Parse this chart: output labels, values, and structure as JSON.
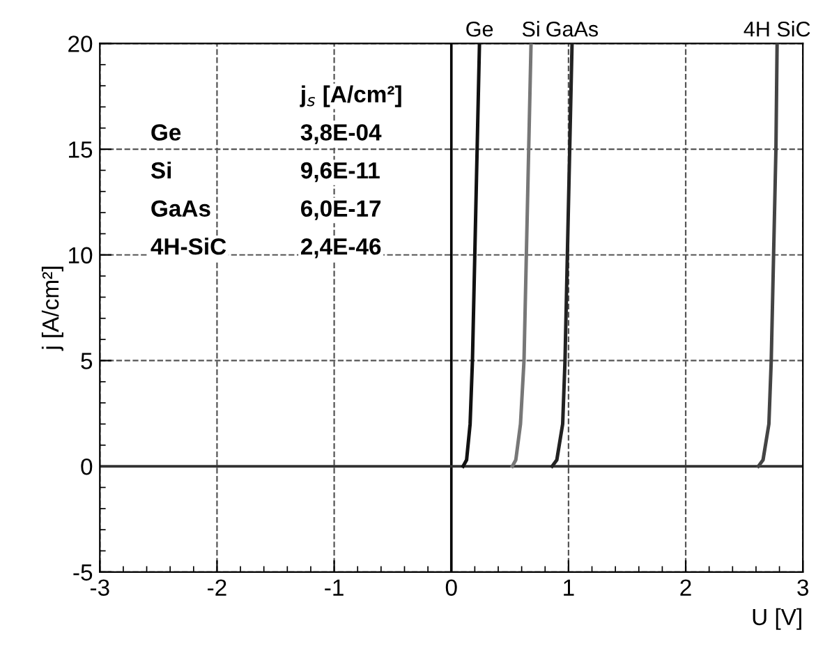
{
  "chart_data": {
    "type": "line",
    "xlabel": "U [V]",
    "ylabel": "j [A/cm²]",
    "xlim": [
      -3,
      3
    ],
    "ylim": [
      -5,
      20
    ],
    "xticks": [
      -3,
      -2,
      -1,
      0,
      1,
      2,
      3
    ],
    "yticks": [
      -5,
      0,
      5,
      10,
      15,
      20
    ],
    "grid": true,
    "legend": false,
    "marker": "none",
    "line_style": "solid",
    "series": [
      {
        "name": "Ge",
        "color": "#111111",
        "x": [
          0.1,
          0.13,
          0.16,
          0.18,
          0.2,
          0.22,
          0.24
        ],
        "values": [
          0,
          0.3,
          2,
          5,
          10,
          15,
          20
        ]
      },
      {
        "name": "Si",
        "color": "#777777",
        "x": [
          0.52,
          0.55,
          0.59,
          0.62,
          0.64,
          0.66,
          0.68
        ],
        "values": [
          0,
          0.3,
          2,
          5,
          10,
          15,
          20
        ]
      },
      {
        "name": "GaAs",
        "color": "#222222",
        "x": [
          0.86,
          0.9,
          0.95,
          0.97,
          0.99,
          1.01,
          1.03
        ],
        "values": [
          0,
          0.3,
          2,
          5,
          10,
          15,
          20
        ]
      },
      {
        "name": "4H SiC",
        "color": "#444444",
        "x": [
          2.62,
          2.66,
          2.71,
          2.73,
          2.75,
          2.77,
          2.78
        ],
        "values": [
          0,
          0.3,
          2,
          5,
          10,
          15,
          20
        ]
      }
    ],
    "ref_lines": [
      {
        "axis": "x",
        "value": 0,
        "color": "#000000",
        "line_style": "solid"
      },
      {
        "axis": "y",
        "value": 0,
        "color": "#333333",
        "line_style": "solid"
      }
    ],
    "annotations": [
      "j$_{s}$ [A/cm²]",
      "Ge",
      "3,8E-04",
      "Si",
      "9,6E-11",
      "GaAs",
      "6,0E-17",
      "4H-SiC",
      "2,4E-46"
    ]
  }
}
